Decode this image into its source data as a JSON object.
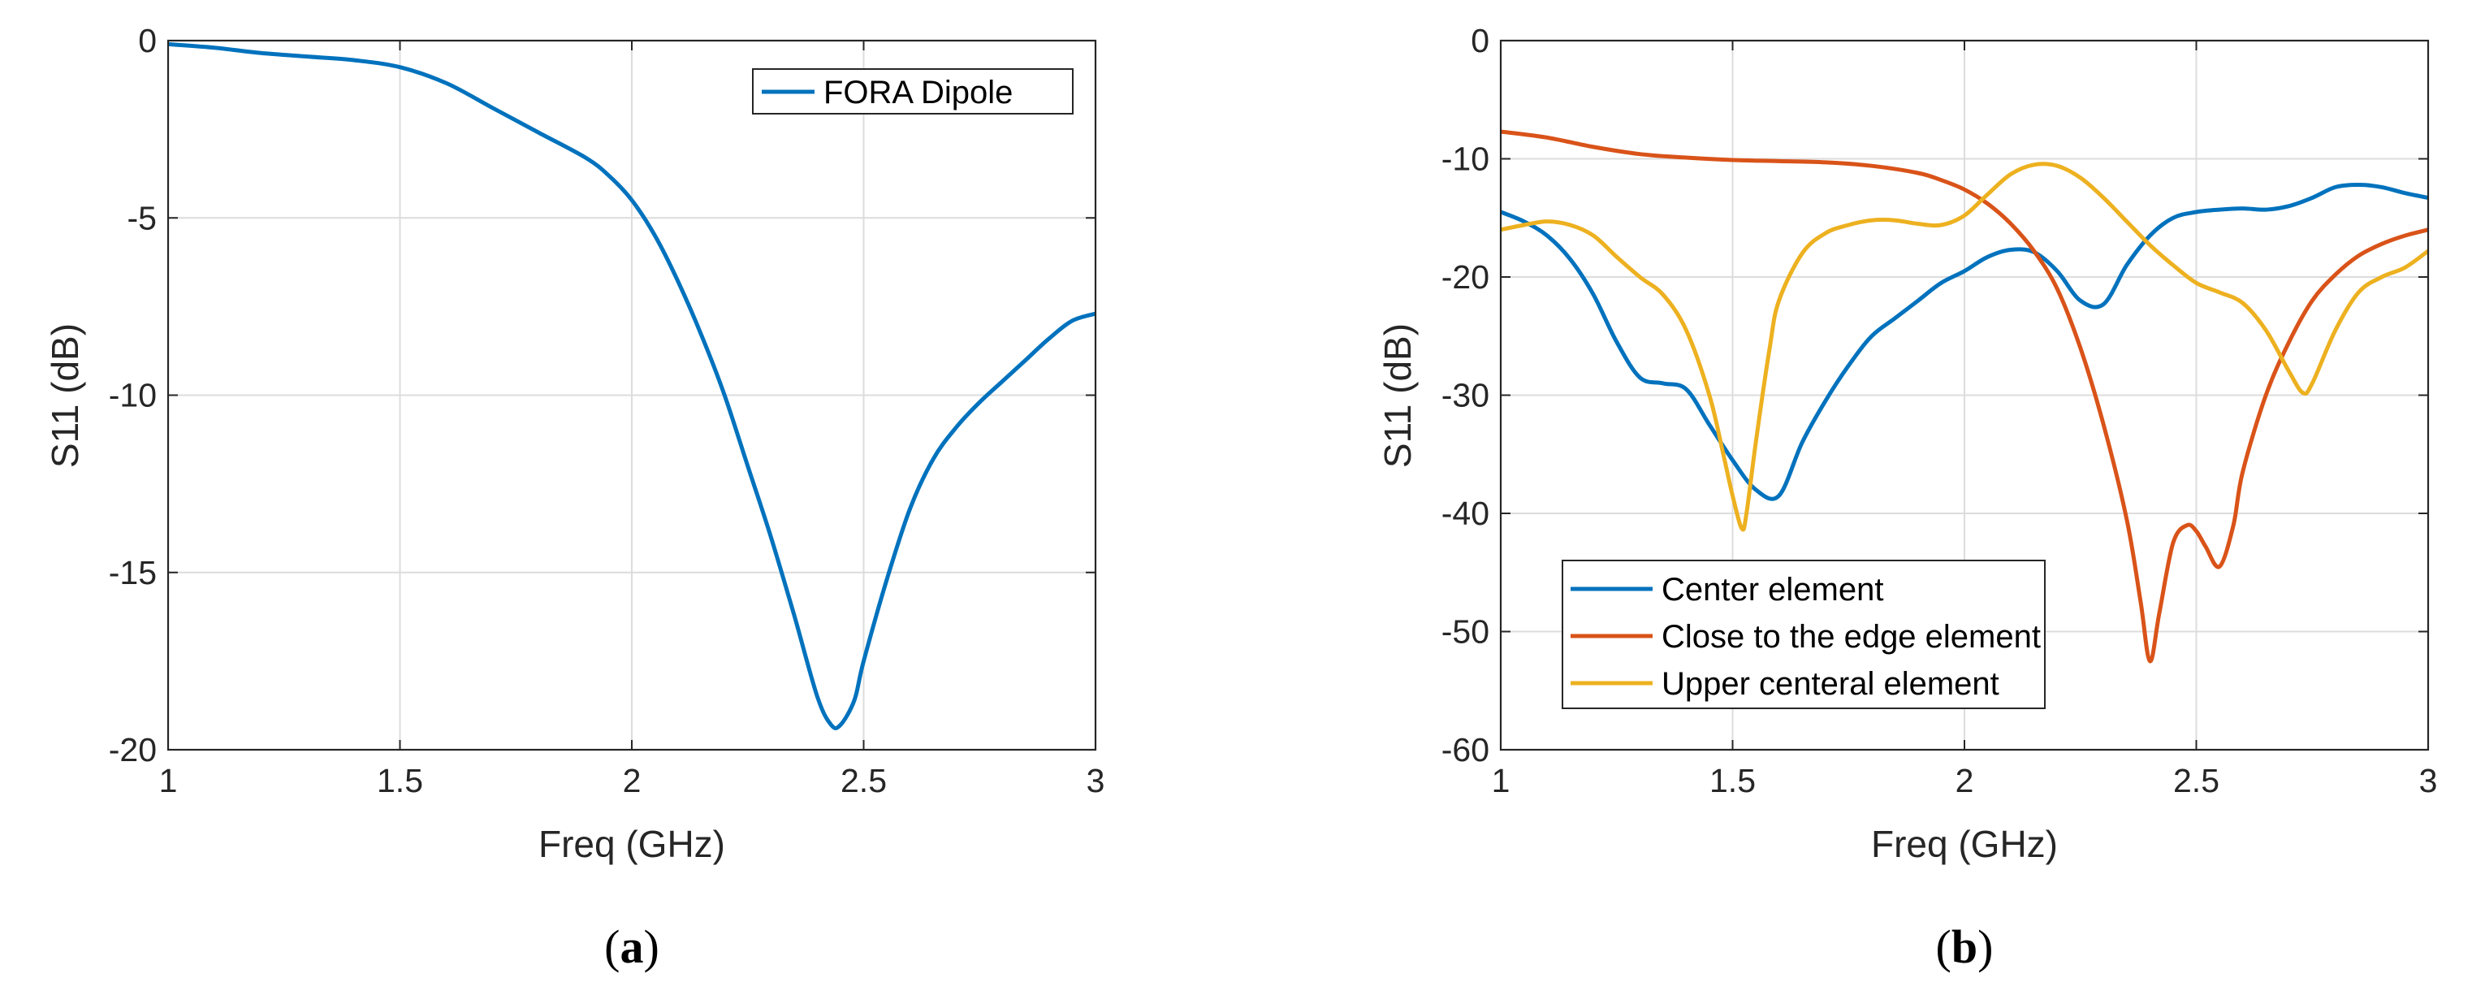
{
  "chart_data": [
    {
      "type": "line",
      "panel": "a",
      "caption_letter": "a",
      "title": "",
      "xlabel": "Freq (GHz)",
      "ylabel": "S11 (dB)",
      "xlim": [
        1,
        3
      ],
      "ylim": [
        -20,
        0
      ],
      "xticks": [
        1,
        1.5,
        2,
        2.5,
        3
      ],
      "xtick_labels": [
        "1",
        "1.5",
        "2",
        "2.5",
        "3"
      ],
      "yticks": [
        -20,
        -15,
        -10,
        -5,
        0
      ],
      "ytick_labels": [
        "-20",
        "-15",
        "-10",
        "-5",
        "0"
      ],
      "grid": true,
      "legend_position": "top-right",
      "series": [
        {
          "name": "FORA Dipole",
          "color": "#0072bd",
          "x": [
            1.0,
            1.1,
            1.2,
            1.3,
            1.4,
            1.5,
            1.6,
            1.7,
            1.8,
            1.9,
            1.95,
            2.0,
            2.05,
            2.1,
            2.15,
            2.2,
            2.25,
            2.3,
            2.35,
            2.4,
            2.43,
            2.45,
            2.48,
            2.5,
            2.55,
            2.6,
            2.65,
            2.7,
            2.75,
            2.8,
            2.85,
            2.9,
            2.95,
            3.0
          ],
          "y": [
            -0.1,
            -0.2,
            -0.35,
            -0.45,
            -0.55,
            -0.75,
            -1.2,
            -1.9,
            -2.6,
            -3.3,
            -3.8,
            -4.5,
            -5.5,
            -6.8,
            -8.3,
            -10.0,
            -12.0,
            -14.0,
            -16.2,
            -18.5,
            -19.3,
            -19.3,
            -18.6,
            -17.5,
            -15.2,
            -13.2,
            -11.8,
            -10.9,
            -10.2,
            -9.6,
            -9.0,
            -8.4,
            -7.9,
            -7.7
          ]
        }
      ]
    },
    {
      "type": "line",
      "panel": "b",
      "caption_letter": "b",
      "title": "",
      "xlabel": "Freq (GHz)",
      "ylabel": "S11 (dB)",
      "xlim": [
        1,
        3
      ],
      "ylim": [
        -60,
        0
      ],
      "xticks": [
        1,
        1.5,
        2,
        2.5,
        3
      ],
      "xtick_labels": [
        "1",
        "1.5",
        "2",
        "2.5",
        "3"
      ],
      "yticks": [
        -60,
        -50,
        -40,
        -30,
        -20,
        -10,
        0
      ],
      "ytick_labels": [
        "-60",
        "-50",
        "-40",
        "-30",
        "-20",
        "-10",
        "0"
      ],
      "grid": true,
      "legend_position": "bottom-left",
      "series": [
        {
          "name": "Center element",
          "color": "#0072bd",
          "x": [
            1.0,
            1.05,
            1.1,
            1.15,
            1.2,
            1.25,
            1.3,
            1.35,
            1.4,
            1.45,
            1.5,
            1.55,
            1.6,
            1.65,
            1.7,
            1.75,
            1.8,
            1.85,
            1.9,
            1.95,
            2.0,
            2.05,
            2.1,
            2.15,
            2.2,
            2.25,
            2.3,
            2.35,
            2.4,
            2.45,
            2.5,
            2.55,
            2.6,
            2.65,
            2.7,
            2.75,
            2.8,
            2.85,
            2.9,
            2.95,
            3.0
          ],
          "y": [
            -14.5,
            -15.3,
            -16.5,
            -18.5,
            -21.5,
            -25.5,
            -28.5,
            -29.0,
            -29.5,
            -32.5,
            -35.5,
            -38.0,
            -38.5,
            -34.0,
            -30.5,
            -27.5,
            -25.0,
            -23.5,
            -22.0,
            -20.5,
            -19.5,
            -18.3,
            -17.7,
            -17.9,
            -19.5,
            -22.0,
            -22.3,
            -19.0,
            -16.5,
            -15.0,
            -14.5,
            -14.3,
            -14.2,
            -14.3,
            -14.0,
            -13.3,
            -12.4,
            -12.2,
            -12.4,
            -12.9,
            -13.3
          ]
        },
        {
          "name": "Close to the edge element",
          "color": "#d95319",
          "x": [
            1.0,
            1.1,
            1.2,
            1.3,
            1.4,
            1.5,
            1.6,
            1.7,
            1.8,
            1.9,
            1.95,
            2.0,
            2.05,
            2.1,
            2.15,
            2.2,
            2.25,
            2.3,
            2.35,
            2.38,
            2.4,
            2.42,
            2.45,
            2.48,
            2.5,
            2.52,
            2.55,
            2.58,
            2.6,
            2.65,
            2.7,
            2.75,
            2.8,
            2.85,
            2.9,
            2.95,
            3.0
          ],
          "y": [
            -7.7,
            -8.2,
            -9.0,
            -9.6,
            -9.9,
            -10.1,
            -10.2,
            -10.3,
            -10.6,
            -11.2,
            -11.8,
            -12.6,
            -13.8,
            -15.5,
            -17.8,
            -21.0,
            -26.0,
            -32.5,
            -40.5,
            -47.5,
            -52.5,
            -48.5,
            -42.5,
            -41.0,
            -41.5,
            -42.8,
            -44.5,
            -41.0,
            -36.5,
            -30.0,
            -25.5,
            -22.0,
            -19.8,
            -18.2,
            -17.2,
            -16.5,
            -16.0
          ]
        },
        {
          "name": "Upper centeral element",
          "color": "#edb120",
          "x": [
            1.0,
            1.05,
            1.1,
            1.15,
            1.2,
            1.25,
            1.3,
            1.35,
            1.4,
            1.45,
            1.48,
            1.5,
            1.52,
            1.53,
            1.55,
            1.58,
            1.6,
            1.65,
            1.7,
            1.75,
            1.8,
            1.85,
            1.9,
            1.95,
            2.0,
            2.05,
            2.1,
            2.15,
            2.2,
            2.25,
            2.3,
            2.35,
            2.4,
            2.45,
            2.5,
            2.55,
            2.6,
            2.65,
            2.7,
            2.73,
            2.75,
            2.8,
            2.85,
            2.9,
            2.95,
            3.0
          ],
          "y": [
            -16.0,
            -15.6,
            -15.3,
            -15.6,
            -16.5,
            -18.3,
            -20.0,
            -21.5,
            -24.5,
            -30.0,
            -35.0,
            -38.5,
            -41.3,
            -40.0,
            -34.0,
            -26.0,
            -22.0,
            -18.0,
            -16.3,
            -15.6,
            -15.2,
            -15.2,
            -15.5,
            -15.6,
            -14.8,
            -13.0,
            -11.3,
            -10.5,
            -10.6,
            -11.6,
            -13.3,
            -15.3,
            -17.3,
            -19.0,
            -20.5,
            -21.3,
            -22.2,
            -24.5,
            -28.0,
            -29.8,
            -29.0,
            -24.5,
            -21.3,
            -20.0,
            -19.2,
            -17.8
          ]
        }
      ]
    }
  ]
}
